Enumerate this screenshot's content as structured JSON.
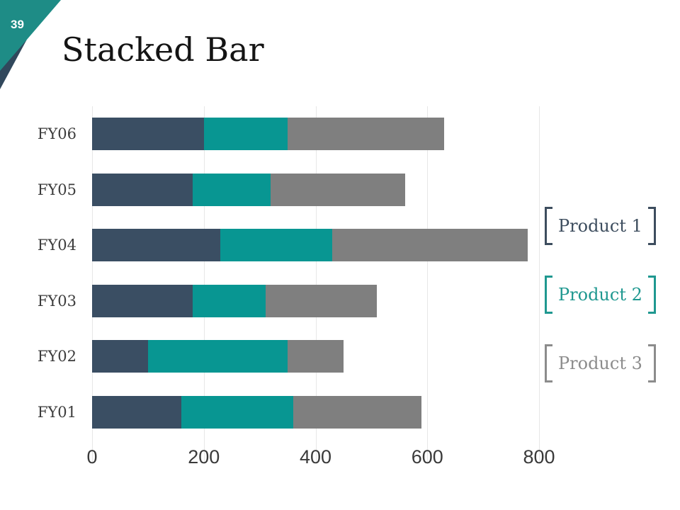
{
  "slide": {
    "page_number": "39",
    "title": "Stacked Bar"
  },
  "colors": {
    "corner_teal": "#1e8c86",
    "corner_navy": "#31485c",
    "grid": "#e7e7e7",
    "axis_text": "#3a3a3a",
    "category_text": "#3c3c3c",
    "title_text": "#141414",
    "page_number_text": "#ffffff"
  },
  "chart_data": {
    "type": "bar",
    "orientation": "horizontal",
    "stacked": true,
    "title": "Stacked Bar",
    "categories": [
      "FY06",
      "FY05",
      "FY04",
      "FY03",
      "FY02",
      "FY01"
    ],
    "series": [
      {
        "name": "Product 1",
        "color": "#3a4e63",
        "values": [
          200,
          180,
          230,
          180,
          100,
          160
        ]
      },
      {
        "name": "Product 2",
        "color": "#089692",
        "values": [
          150,
          140,
          200,
          130,
          250,
          200
        ]
      },
      {
        "name": "Product 3",
        "color": "#7f7f7f",
        "values": [
          280,
          240,
          350,
          200,
          100,
          230
        ]
      }
    ],
    "totals": [
      630,
      560,
      780,
      510,
      450,
      590
    ],
    "x_axis": {
      "min": 0,
      "max": 800,
      "ticks": [
        0,
        200,
        400,
        600,
        800
      ]
    },
    "grid": true,
    "legend_position": "right",
    "legend": [
      {
        "label": "Product 1",
        "color": "#3d4d5e"
      },
      {
        "label": "Product 2",
        "color": "#1f9890"
      },
      {
        "label": "Product 3",
        "color": "#8c8c8c"
      }
    ]
  }
}
